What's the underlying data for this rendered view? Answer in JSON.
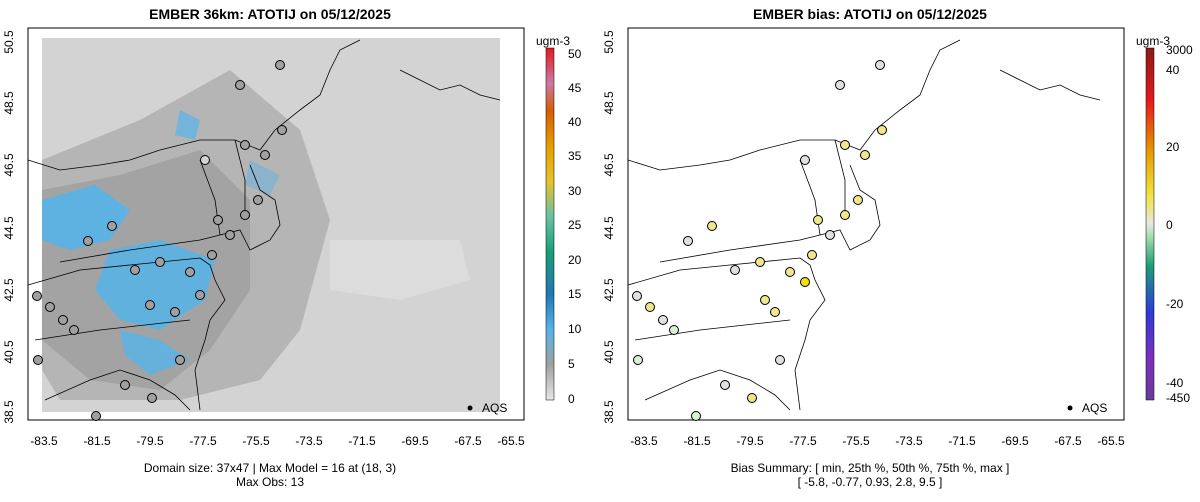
{
  "left": {
    "title": "EMBER 36km: ATOTIJ on 05/12/2025",
    "unit": "ugm-3",
    "cbar_ticks": [
      "50",
      "45",
      "40",
      "35",
      "30",
      "25",
      "20",
      "15",
      "10",
      "5",
      "0"
    ],
    "legend_label": "AQS",
    "caption_line1": "Domain size: 37x47 | Max Model = 16 at (18, 3)",
    "caption_line2": "Max Obs: 13"
  },
  "right": {
    "title": "EMBER bias: ATOTIJ on 05/12/2025",
    "unit": "ugm-3",
    "cbar_ticks": [
      "3000",
      "40",
      "20",
      "0",
      "-20",
      "-40",
      "-450"
    ],
    "legend_label": "AQS",
    "caption_line1": "Bias Summary: [ min, 25th %, 50th %, 75th %, max ]",
    "caption_line2": "[ -5.8,   -0.77,  0.93,   2.8,   9.5 ]"
  },
  "axes": {
    "x_ticks": [
      "-83.5",
      "-81.5",
      "-79.5",
      "-77.5",
      "-75.5",
      "-73.5",
      "-71.5",
      "-69.5",
      "-67.5",
      "-65.5"
    ],
    "y_ticks": [
      "50.5",
      "48.5",
      "46.5",
      "44.5",
      "42.5",
      "40.5",
      "38.5"
    ]
  },
  "colors": {
    "model_bg": "#d3d3d3",
    "model_mid": "#a9a9a9",
    "model_high": "#56b4e9",
    "obs_gray": "#a0a0a0",
    "bias_pos": "#f0e68c",
    "bias_neutral": "#e0e0e0"
  }
}
